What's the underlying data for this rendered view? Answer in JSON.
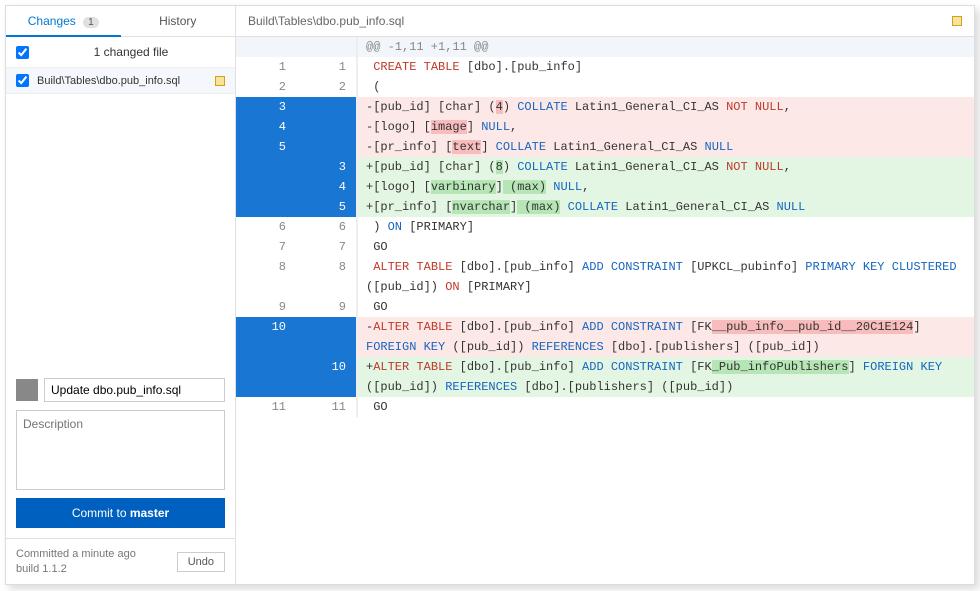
{
  "tabs": {
    "changes": "Changes",
    "changes_count": "1",
    "history": "History"
  },
  "files": {
    "summary": "1 changed file",
    "item": {
      "path": "Build\\Tables\\dbo.pub_info.sql"
    }
  },
  "header": {
    "path": "Build\\Tables\\dbo.pub_info.sql"
  },
  "commit": {
    "message": "Update dbo.pub_info.sql",
    "desc_placeholder": "Description",
    "button_prefix": "Commit to ",
    "button_branch": "master"
  },
  "status": {
    "line1": "Committed a minute ago",
    "line2": "build 1.1.2",
    "undo": "Undo"
  },
  "colors": {
    "accent": "#0078d4",
    "button": "#0060c0",
    "changed_ln_bg": "#1976d2",
    "del_bg": "#fde8e8",
    "add_bg": "#e3f6e3"
  },
  "diff": {
    "hunk_header": "@@ -1,11 +1,11 @@",
    "rows": [
      {
        "type": "hunk",
        "old": "",
        "new": ""
      },
      {
        "type": "ctx",
        "old": "1",
        "new": "1",
        "segs": [
          {
            "t": " CREATE TABLE",
            "c": "kw-red"
          },
          {
            "t": " [dbo].[pub_info]"
          }
        ]
      },
      {
        "type": "ctx",
        "old": "2",
        "new": "2",
        "segs": [
          {
            "t": " ("
          }
        ]
      },
      {
        "type": "del",
        "old": "3",
        "new": "",
        "segs": [
          {
            "t": "-[pub_id] [char] ("
          },
          {
            "t": "4",
            "c": "hl-del"
          },
          {
            "t": ") "
          },
          {
            "t": "COLLATE",
            "c": "kw-blue"
          },
          {
            "t": " Latin1_General_CI_AS "
          },
          {
            "t": "NOT NULL",
            "c": "kw-red"
          },
          {
            "t": ","
          }
        ]
      },
      {
        "type": "del",
        "old": "4",
        "new": "",
        "segs": [
          {
            "t": "-[logo] ["
          },
          {
            "t": "image",
            "c": "hl-del"
          },
          {
            "t": "] "
          },
          {
            "t": "NULL",
            "c": "kw-blue"
          },
          {
            "t": ","
          }
        ]
      },
      {
        "type": "del",
        "old": "5",
        "new": "",
        "segs": [
          {
            "t": "-[pr_info] ["
          },
          {
            "t": "text",
            "c": "hl-del"
          },
          {
            "t": "] "
          },
          {
            "t": "COLLATE",
            "c": "kw-blue"
          },
          {
            "t": " Latin1_General_CI_AS "
          },
          {
            "t": "NULL",
            "c": "kw-blue"
          }
        ]
      },
      {
        "type": "add",
        "old": "",
        "new": "3",
        "segs": [
          {
            "t": "+[pub_id] [char] ("
          },
          {
            "t": "8",
            "c": "hl-add"
          },
          {
            "t": ") "
          },
          {
            "t": "COLLATE",
            "c": "kw-blue"
          },
          {
            "t": " Latin1_General_CI_AS "
          },
          {
            "t": "NOT NULL",
            "c": "kw-red"
          },
          {
            "t": ","
          }
        ]
      },
      {
        "type": "add",
        "old": "",
        "new": "4",
        "segs": [
          {
            "t": "+[logo] ["
          },
          {
            "t": "varbinary",
            "c": "hl-add"
          },
          {
            "t": "]"
          },
          {
            "t": " (max)",
            "c": "hl-add"
          },
          {
            "t": " "
          },
          {
            "t": "NULL",
            "c": "kw-blue"
          },
          {
            "t": ","
          }
        ]
      },
      {
        "type": "add",
        "old": "",
        "new": "5",
        "segs": [
          {
            "t": "+[pr_info] ["
          },
          {
            "t": "nvarchar",
            "c": "hl-add"
          },
          {
            "t": "]"
          },
          {
            "t": " (max)",
            "c": "hl-add"
          },
          {
            "t": " "
          },
          {
            "t": "COLLATE",
            "c": "kw-blue"
          },
          {
            "t": " Latin1_General_CI_AS "
          },
          {
            "t": "NULL",
            "c": "kw-blue"
          }
        ]
      },
      {
        "type": "ctx",
        "old": "6",
        "new": "6",
        "segs": [
          {
            "t": " ) "
          },
          {
            "t": "ON",
            "c": "kw-blue"
          },
          {
            "t": " [PRIMARY]"
          }
        ]
      },
      {
        "type": "ctx",
        "old": "7",
        "new": "7",
        "segs": [
          {
            "t": " GO"
          }
        ]
      },
      {
        "type": "ctx",
        "old": "8",
        "new": "8",
        "segs": [
          {
            "t": " ALTER TABLE",
            "c": "kw-red"
          },
          {
            "t": " [dbo].[pub_info] "
          },
          {
            "t": "ADD CONSTRAINT",
            "c": "kw-blue"
          },
          {
            "t": " [UPKCL_pubinfo] "
          },
          {
            "t": "PRIMARY KEY CLUSTERED",
            "c": "kw-blue"
          },
          {
            "t": "  ([pub_id]) "
          },
          {
            "t": "ON",
            "c": "kw-red"
          },
          {
            "t": " [PRIMARY]"
          }
        ]
      },
      {
        "type": "ctx",
        "old": "9",
        "new": "9",
        "segs": [
          {
            "t": " GO"
          }
        ]
      },
      {
        "type": "del",
        "old": "10",
        "new": "",
        "segs": [
          {
            "t": "-"
          },
          {
            "t": "ALTER TABLE",
            "c": "kw-red"
          },
          {
            "t": " [dbo].[pub_info] "
          },
          {
            "t": "ADD CONSTRAINT",
            "c": "kw-blue"
          },
          {
            "t": " [FK"
          },
          {
            "t": "__pub_info__pub_id__20C1E124",
            "c": "hl-del"
          },
          {
            "t": "] "
          },
          {
            "t": "FOREIGN KEY",
            "c": "kw-blue"
          },
          {
            "t": " ([pub_id]) "
          },
          {
            "t": "REFERENCES",
            "c": "kw-blue"
          },
          {
            "t": " [dbo].[publishers] ([pub_id])"
          }
        ]
      },
      {
        "type": "add",
        "old": "",
        "new": "10",
        "segs": [
          {
            "t": "+"
          },
          {
            "t": "ALTER TABLE",
            "c": "kw-red"
          },
          {
            "t": " [dbo].[pub_info] "
          },
          {
            "t": "ADD CONSTRAINT",
            "c": "kw-blue"
          },
          {
            "t": " [FK"
          },
          {
            "t": "_Pub_infoPublishers",
            "c": "hl-add"
          },
          {
            "t": "] "
          },
          {
            "t": "FOREIGN KEY",
            "c": "kw-blue"
          },
          {
            "t": " ([pub_id]) "
          },
          {
            "t": "REFERENCES",
            "c": "kw-blue"
          },
          {
            "t": " [dbo].[publishers] ([pub_id])"
          }
        ]
      },
      {
        "type": "ctx",
        "old": "11",
        "new": "11",
        "segs": [
          {
            "t": " GO"
          }
        ]
      }
    ]
  }
}
